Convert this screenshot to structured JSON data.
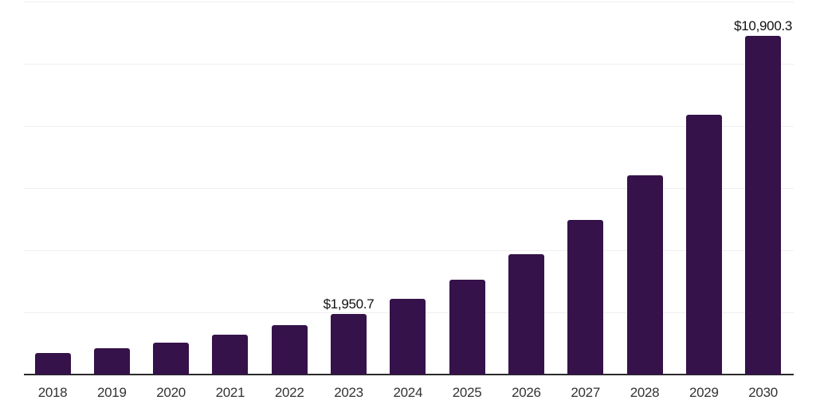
{
  "chart_data": {
    "type": "bar",
    "title": "",
    "xlabel": "",
    "ylabel": "",
    "categories": [
      "2018",
      "2019",
      "2020",
      "2021",
      "2022",
      "2023",
      "2024",
      "2025",
      "2026",
      "2027",
      "2028",
      "2029",
      "2030"
    ],
    "values": [
      680,
      840,
      1030,
      1290,
      1580,
      1950.7,
      2430,
      3060,
      3865,
      4975,
      6405,
      8350,
      10900.3
    ],
    "data_labels": [
      {
        "category": "2023",
        "text": "$1,950.7"
      },
      {
        "category": "2030",
        "text": "$10,900.3"
      }
    ],
    "ylim": [
      0,
      12000
    ],
    "gridline_step": 2000,
    "grid": "horizontal-only",
    "y_axis_tick_labels_visible": false,
    "legend": "none",
    "colors": {
      "bar": "#351249",
      "gridline": "#efefef",
      "axis_line": "#2b2b2b",
      "x_label": "#333333",
      "value_label": "#111111",
      "background": "#ffffff"
    }
  }
}
